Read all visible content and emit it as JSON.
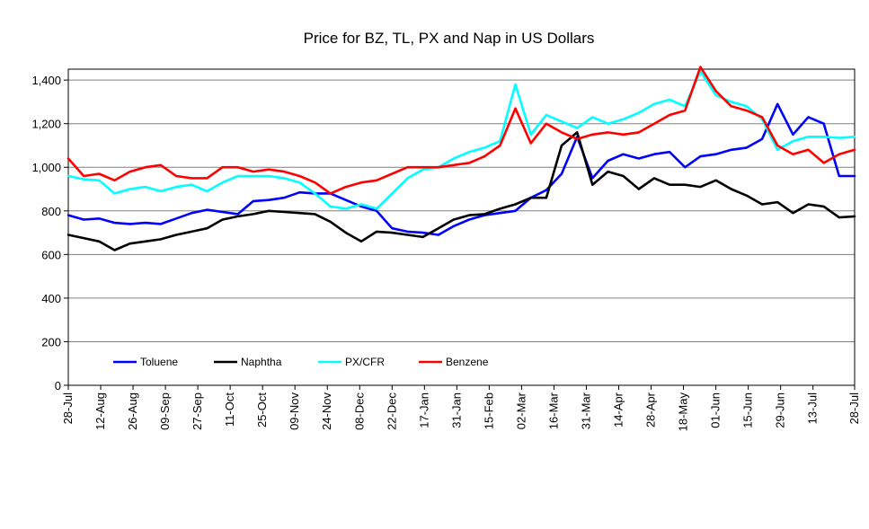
{
  "chart_data": {
    "type": "line",
    "title": "Price for BZ, TL, PX and Nap in US Dollars",
    "xlabel": "",
    "ylabel": "",
    "ylim": [
      0,
      1450
    ],
    "yticks": [
      0,
      200,
      400,
      600,
      800,
      1000,
      1200,
      1400
    ],
    "ytick_labels": [
      "0",
      "200",
      "400",
      "600",
      "800",
      "1,000",
      "1,200",
      "1,400"
    ],
    "x_count": 52,
    "xtick_labels": [
      "28-Jul",
      "12-Aug",
      "26-Aug",
      "09-Sep",
      "27-Sep",
      "11-Oct",
      "25-Oct",
      "09-Nov",
      "24-Nov",
      "08-Dec",
      "22-Dec",
      "17-Jan",
      "31-Jan",
      "15-Feb",
      "02-Mar",
      "16-Mar",
      "31-Mar",
      "14-Apr",
      "28-Apr",
      "18-May",
      "01-Jun",
      "15-Jun",
      "29-Jun",
      "13-Jul",
      "28-Jul"
    ],
    "xtick_positions": [
      0,
      2.1,
      4.2,
      6.3,
      8.4,
      10.5,
      12.6,
      14.7,
      16.8,
      18.9,
      21.0,
      23.1,
      25.2,
      27.3,
      29.4,
      31.5,
      33.6,
      35.7,
      37.8,
      39.9,
      42.0,
      44.1,
      46.2,
      48.3,
      51
    ],
    "grid": true,
    "legend_position": "bottom-left",
    "series": [
      {
        "name": "Toluene",
        "color": "#0000ff",
        "values": [
          780,
          760,
          765,
          745,
          740,
          745,
          740,
          765,
          790,
          805,
          795,
          785,
          845,
          850,
          860,
          885,
          880,
          880,
          850,
          820,
          800,
          720,
          705,
          700,
          690,
          730,
          760,
          780,
          790,
          800,
          860,
          895,
          970,
          1140,
          950,
          1030,
          1060,
          1040,
          1060,
          1070,
          1000,
          1050,
          1060,
          1080,
          1090,
          1130,
          1290,
          1150,
          1230,
          1200,
          960,
          960
        ]
      },
      {
        "name": "Naphtha",
        "color": "#000000",
        "values": [
          690,
          675,
          660,
          620,
          650,
          660,
          670,
          690,
          705,
          720,
          760,
          775,
          785,
          800,
          795,
          790,
          785,
          750,
          700,
          660,
          705,
          700,
          690,
          680,
          720,
          760,
          780,
          785,
          810,
          830,
          860,
          860,
          1100,
          1160,
          920,
          980,
          960,
          900,
          950,
          920,
          920,
          910,
          940,
          900,
          870,
          830,
          840,
          790,
          830,
          820,
          770,
          775
        ]
      },
      {
        "name": "PX/CFR",
        "color": "#00ffff",
        "values": [
          960,
          945,
          940,
          880,
          900,
          910,
          890,
          910,
          920,
          890,
          930,
          960,
          960,
          960,
          950,
          930,
          880,
          820,
          810,
          830,
          810,
          880,
          950,
          990,
          1000,
          1040,
          1070,
          1090,
          1120,
          1380,
          1150,
          1240,
          1210,
          1180,
          1230,
          1200,
          1220,
          1250,
          1290,
          1310,
          1280,
          1440,
          1330,
          1300,
          1280,
          1220,
          1080,
          1120,
          1140,
          1140,
          1135,
          1140
        ]
      },
      {
        "name": "Benzene",
        "color": "#ff0000",
        "values": [
          1040,
          960,
          970,
          940,
          980,
          1000,
          1010,
          960,
          950,
          950,
          1000,
          1000,
          980,
          990,
          980,
          960,
          930,
          880,
          910,
          930,
          940,
          970,
          1000,
          1000,
          1000,
          1010,
          1020,
          1050,
          1100,
          1270,
          1110,
          1200,
          1160,
          1130,
          1150,
          1160,
          1150,
          1160,
          1200,
          1240,
          1260,
          1460,
          1350,
          1280,
          1260,
          1230,
          1100,
          1060,
          1080,
          1020,
          1060,
          1080
        ]
      }
    ]
  }
}
